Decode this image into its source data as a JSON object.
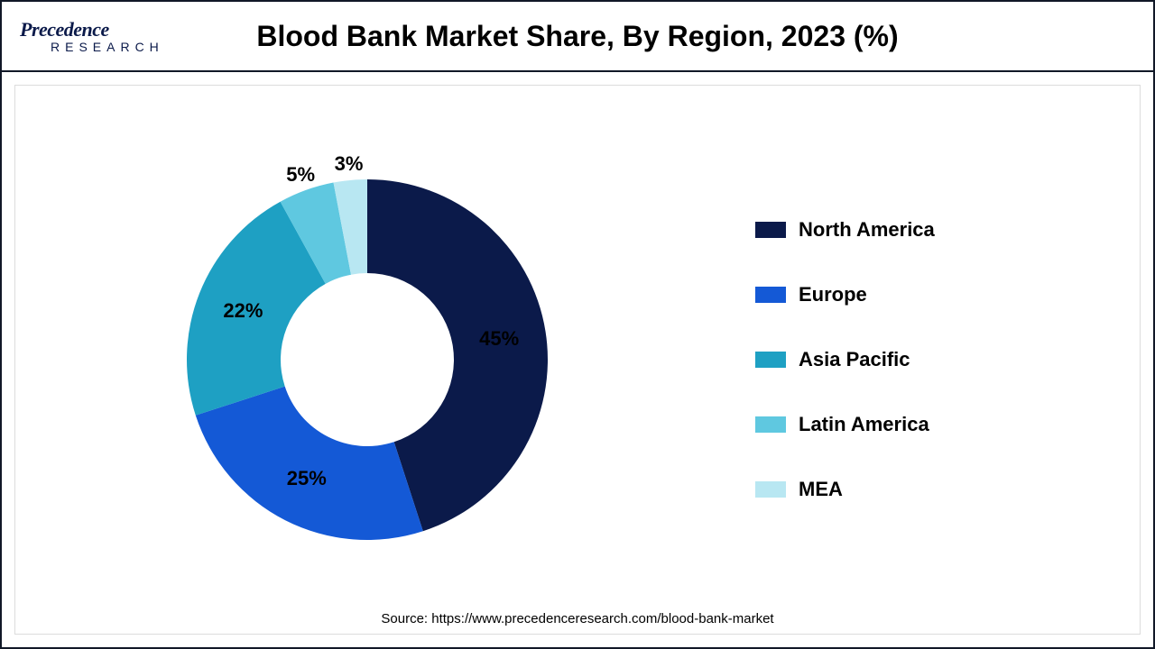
{
  "header": {
    "logo_top": "Precedence",
    "logo_bottom": "RESEARCH",
    "title": "Blood Bank Market Share, By Region, 2023 (%)"
  },
  "chart": {
    "type": "donut",
    "inner_radius_ratio": 0.48,
    "start_angle_deg": 0,
    "direction": "clockwise",
    "background_color": "#ffffff",
    "slices": [
      {
        "label": "North America",
        "value": 45,
        "color": "#0b1a4a",
        "text": "45%"
      },
      {
        "label": "Europe",
        "value": 25,
        "color": "#1459d6",
        "text": "25%"
      },
      {
        "label": "Asia Pacific",
        "value": 22,
        "color": "#1ea0c3",
        "text": "22%"
      },
      {
        "label": "Latin America",
        "value": 5,
        "color": "#5fc8e0",
        "text": "5%"
      },
      {
        "label": "MEA",
        "value": 3,
        "color": "#b8e7f2",
        "text": "3%"
      }
    ],
    "label_fontsize": 22,
    "label_fontweight": "700",
    "label_color": "#000000"
  },
  "legend": {
    "fontsize": 22,
    "fontweight": "700",
    "swatch_w": 34,
    "swatch_h": 18,
    "gap": 46
  },
  "source": {
    "text": "Source: https://www.precedenceresearch.com/blood-bank-market",
    "fontsize": 15
  }
}
